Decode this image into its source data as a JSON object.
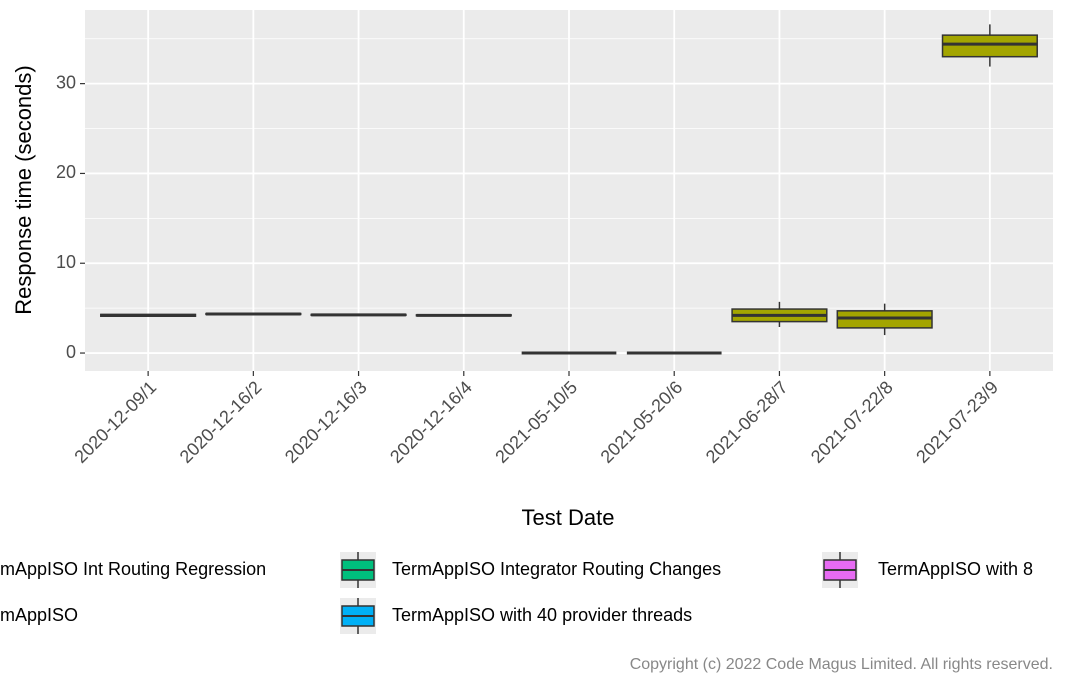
{
  "chart_data": {
    "type": "boxplot",
    "x_label": "Test Date",
    "y_label": "Response time (seconds)",
    "categories": [
      "2020-12-09/1",
      "2020-12-16/2",
      "2020-12-16/3",
      "2020-12-16/4",
      "2021-05-10/5",
      "2021-05-20/6",
      "2021-06-28/7",
      "2021-07-22/8",
      "2021-07-23/9"
    ],
    "boxes": [
      {
        "min": 4.1,
        "q1": 4.1,
        "median": 4.2,
        "q3": 4.3,
        "max": 4.3
      },
      {
        "min": 4.25,
        "q1": 4.3,
        "median": 4.35,
        "q3": 4.4,
        "max": 4.45
      },
      {
        "min": 4.15,
        "q1": 4.2,
        "median": 4.25,
        "q3": 4.3,
        "max": 4.35
      },
      {
        "min": 4.1,
        "q1": 4.15,
        "median": 4.2,
        "q3": 4.25,
        "max": 4.3
      },
      {
        "min": 0,
        "q1": 0,
        "median": 0,
        "q3": 0,
        "max": 0
      },
      {
        "min": 0,
        "q1": 0,
        "median": 0,
        "q3": 0,
        "max": 0
      },
      {
        "min": 2.9,
        "q1": 3.5,
        "median": 4.2,
        "q3": 4.9,
        "max": 5.7
      },
      {
        "min": 2.0,
        "q1": 2.8,
        "median": 3.9,
        "q3": 4.7,
        "max": 5.5
      },
      {
        "min": 31.9,
        "q1": 33.0,
        "median": 34.4,
        "q3": 35.4,
        "max": 36.6
      }
    ],
    "box_color": "#A3A500",
    "ylim": [
      -2.0,
      38.2
    ],
    "yticks": [
      0,
      10,
      20,
      30
    ],
    "minor_grid": [
      5,
      15,
      25,
      35
    ],
    "grid": true,
    "legend": [
      [
        {
          "name": "mAppISO Int Routing Regression"
        },
        {
          "name": "TermAppISO Integrator Routing Changes",
          "color": "#00BF7D"
        },
        {
          "name": "TermAppISO with 8",
          "color": "#E76BF3"
        }
      ],
      [
        {
          "name": "mAppISO"
        },
        {
          "name": "TermAppISO with 40 provider threads",
          "color": "#00B0F6"
        }
      ]
    ],
    "legend_position": "bottom",
    "copyright": "Copyright (c) 2022 Code Magus Limited. All rights reserved."
  }
}
